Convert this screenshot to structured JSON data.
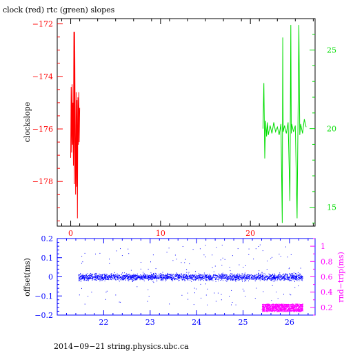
{
  "chart_data": [
    {
      "type": "line",
      "title": "clock (red) rtc (green) slopes",
      "ylabel": "clockslope",
      "x_ticks": [
        "0",
        "10",
        "20"
      ],
      "xlim": [
        -1.5,
        27.2
      ],
      "ylim_left": [
        -179.7,
        -171.8
      ],
      "y_ticks_left": [
        "-172",
        "-174",
        "-176",
        "-178"
      ],
      "ylim_right": [
        13.8,
        27.0
      ],
      "y_ticks_right": [
        "15",
        "20",
        "25"
      ],
      "grid": false,
      "colors": {
        "clock": "#ff0000",
        "rtc": "#00dd00",
        "axis_left": "#ff0000",
        "axis_right": "#00dd00"
      },
      "series": [
        {
          "axis": "left",
          "color": "#ff0000",
          "x": [
            0.0,
            0.05,
            0.1,
            0.15,
            0.2,
            0.25,
            0.3,
            0.35,
            0.4,
            0.45,
            0.5,
            0.55,
            0.6,
            0.65,
            0.7,
            0.75,
            0.8,
            0.85,
            0.9,
            0.95,
            1.0
          ],
          "y": [
            -177.1,
            -174.4,
            -176.9,
            -174.3,
            -176.6,
            -175.0,
            -177.4,
            -172.3,
            -178.1,
            -172.3,
            -176.5,
            -178.5,
            -174.6,
            -178.2,
            -174.9,
            -179.4,
            -174.8,
            -176.6,
            -174.6,
            -176.5,
            -175.2
          ]
        },
        {
          "axis": "right",
          "color": "#00dd00",
          "x": [
            21.4,
            21.5,
            21.6,
            21.7,
            21.8,
            21.9,
            22.0,
            22.2,
            22.4,
            22.6,
            22.8,
            23.0,
            23.2,
            23.4,
            23.55,
            23.6,
            23.65,
            23.8,
            24.0,
            24.2,
            24.4,
            24.5,
            24.55,
            24.6,
            24.8,
            25.0,
            25.2,
            25.4,
            25.5,
            25.6,
            25.8,
            26.0,
            26.2
          ],
          "y": [
            20.0,
            22.9,
            18.1,
            20.5,
            19.5,
            20.4,
            19.6,
            20.2,
            19.7,
            20.4,
            19.8,
            20.1,
            19.6,
            20.3,
            14.0,
            25.8,
            19.8,
            20.2,
            19.7,
            20.4,
            15.4,
            26.6,
            19.7,
            20.3,
            19.8,
            20.2,
            14.3,
            26.6,
            19.6,
            20.3,
            19.7,
            20.6,
            20.1
          ]
        }
      ]
    },
    {
      "type": "scatter",
      "ylabel": "offset(ms)",
      "y2label": "rnd−trip(ms)",
      "xlim": [
        21.0,
        26.55
      ],
      "x_ticks": [
        "22",
        "23",
        "24",
        "25",
        "26"
      ],
      "ylim_left": [
        -0.2,
        0.2
      ],
      "y_ticks_left": [
        "0.2",
        "0.1",
        "0",
        "−0.1",
        "−0.2"
      ],
      "ylim_right": [
        0.1,
        1.1
      ],
      "y_ticks_right": [
        "1",
        "0.8",
        "0.6",
        "0.4",
        "0.2"
      ],
      "grid": false,
      "colors": {
        "offset": "#0000ff",
        "roundtrip": "#ff00ff"
      },
      "series": [
        {
          "name": "offset",
          "axis": "left",
          "color": "#0000ff",
          "x_range": [
            21.45,
            26.28
          ],
          "center": 0.0,
          "band_halfwidth": 0.03,
          "outlier_range": [
            -0.15,
            0.17
          ]
        },
        {
          "name": "rnd-trip",
          "axis": "right",
          "color": "#ff00ff",
          "x_range": [
            25.4,
            26.28
          ],
          "center": 0.2,
          "band_halfwidth": 0.05
        }
      ]
    }
  ],
  "footer": {
    "text": "2014−09−21 string.physics.ubc.ca"
  }
}
